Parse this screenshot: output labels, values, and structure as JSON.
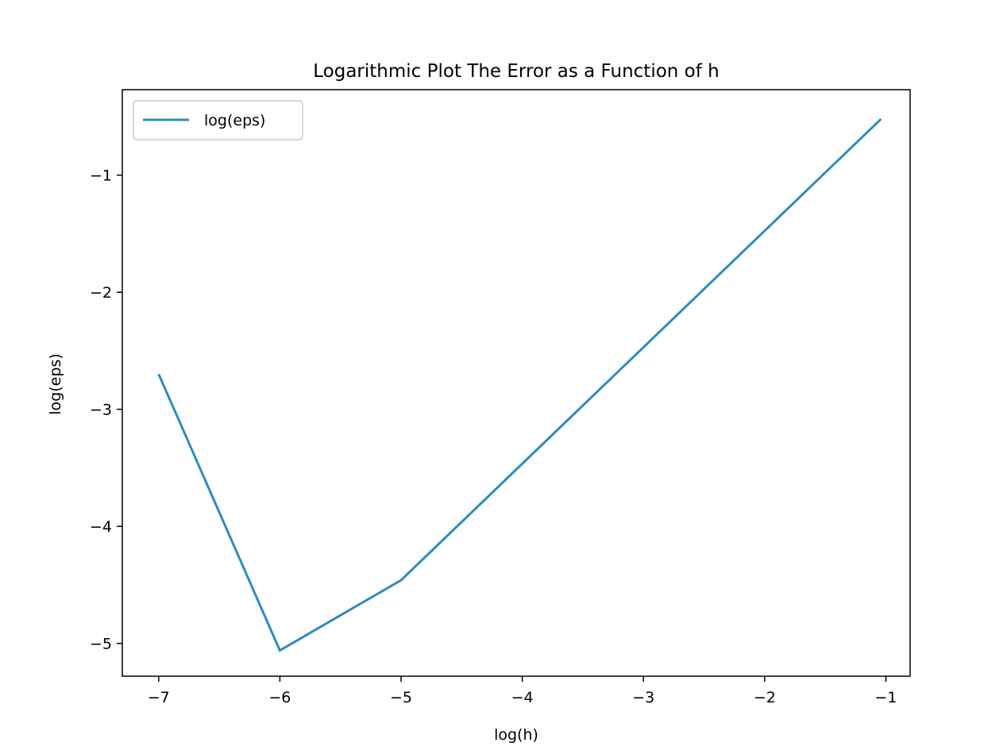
{
  "chart_data": {
    "type": "line",
    "title": "Logarithmic Plot The Error as a Function of h",
    "xlabel": "log(h)",
    "ylabel": "log(eps)",
    "xlim": [
      -7.3,
      -0.8
    ],
    "ylim": [
      -5.28,
      -0.27
    ],
    "xticks": [
      {
        "value": -7,
        "label": "−7"
      },
      {
        "value": -6,
        "label": "−6"
      },
      {
        "value": -5,
        "label": "−5"
      },
      {
        "value": -4,
        "label": "−4"
      },
      {
        "value": -3,
        "label": "−3"
      },
      {
        "value": -2,
        "label": "−2"
      },
      {
        "value": -1,
        "label": "−1"
      }
    ],
    "yticks": [
      {
        "value": -5,
        "label": "−5"
      },
      {
        "value": -4,
        "label": "−4"
      },
      {
        "value": -3,
        "label": "−3"
      },
      {
        "value": -2,
        "label": "−2"
      },
      {
        "value": -1,
        "label": "−1"
      }
    ],
    "grid": false,
    "legend": {
      "placement": "top-left"
    },
    "series": [
      {
        "name": "log(eps)",
        "color": "#2e8bc0",
        "x": [
          -7,
          -6,
          -5,
          -1.04
        ],
        "y": [
          -2.7,
          -5.06,
          -4.46,
          -0.52
        ]
      }
    ]
  }
}
